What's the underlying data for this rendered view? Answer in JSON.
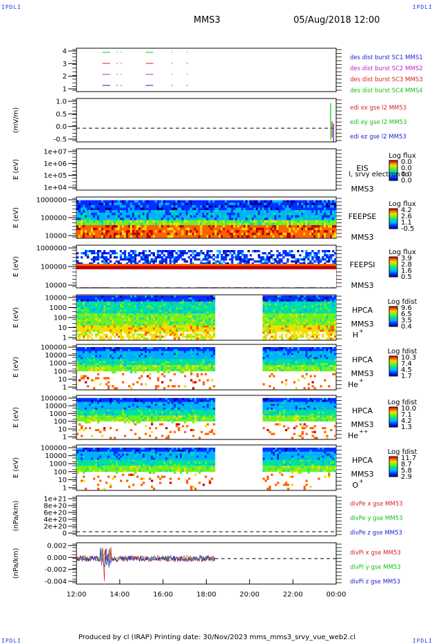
{
  "header": {
    "corner_label": "IPDLI",
    "spacecraft": "MMS3",
    "datetime": "05/Aug/2018 12:00"
  },
  "footer": {
    "text": "Produced by cl (IRAP)   Printing date: 30/Nov/2023   mms_mms3_srvy_vue_web2.cl"
  },
  "colors": {
    "c1": "#1a1ad6",
    "c2": "#d62020",
    "c3": "#c020d0",
    "c4": "#10c010",
    "ok_x": "#d62020",
    "ok_y": "#10c010",
    "ok_z": "#1a1ad6"
  },
  "chart_data": {
    "type": "multi-panel time series",
    "time_axis": {
      "range": [
        "12:00",
        "00:00"
      ],
      "ticks": [
        "12:00",
        "14:00",
        "16:00",
        "18:00",
        "20:00",
        "22:00",
        "00:00"
      ]
    },
    "panels": [
      {
        "id": "burst",
        "yticks": [
          "4",
          "3",
          "2",
          "1"
        ],
        "legend": [
          {
            "label": "des dist burst SC1 MMS1",
            "color_key": "c1"
          },
          {
            "label": "des dist burst SC2 MMS2",
            "color_key": "c3"
          },
          {
            "label": "des dist burst SC3 MMS3",
            "color_key": "c2"
          },
          {
            "label": "des dist burst SC4 MMS4",
            "color_key": "c4"
          }
        ],
        "bursts": [
          [
            13.2,
            13.55
          ],
          [
            13.85,
            13.9
          ],
          [
            14.05,
            14.1
          ],
          [
            15.2,
            15.55
          ],
          [
            16.4,
            16.45
          ],
          [
            17.1,
            17.15
          ]
        ]
      },
      {
        "id": "edi",
        "ylabel": "(mV/m)",
        "yticks": [
          "1.0",
          "0.5",
          "0.0",
          "-0.5"
        ],
        "ylim": [
          -0.6,
          1.3
        ],
        "legend": [
          {
            "label": "edi ex gse l2 MM53",
            "color_key": "ok_x"
          },
          {
            "label": "edi ey gse l2 MM53",
            "color_key": "ok_y"
          },
          {
            "label": "edi ez gse l2 MM53",
            "color_key": "ok_z"
          }
        ]
      },
      {
        "id": "eis",
        "ylabel": "E (eV)",
        "yticks": [
          "1e+07",
          "1e+06",
          "1e+05",
          "1e+04"
        ],
        "label_lines": [
          "EIS",
          "MMS3"
        ],
        "overlay_text": "l, srvy electron to",
        "colorbar_title": "Log flux",
        "colorbar_ticks": [
          "0.0",
          "0.0",
          "0.0",
          "0.0"
        ]
      },
      {
        "id": "feepse",
        "ylabel": "E (eV)",
        "yticks": [
          "1000000",
          "100000",
          "10000"
        ],
        "label_lines": [
          "FEEPSE",
          "MMS3"
        ],
        "colorbar_title": "Log flux",
        "colorbar_ticks": [
          "4.2",
          "2.6",
          "1.1",
          "-0.5"
        ]
      },
      {
        "id": "feepsi",
        "ylabel": "E (eV)",
        "yticks": [
          "1000000",
          "100000",
          "10000"
        ],
        "label_lines": [
          "FEEPSI",
          "MMS3"
        ],
        "colorbar_title": "Log flux",
        "colorbar_ticks": [
          "3.9",
          "2.8",
          "1.6",
          "0.5"
        ]
      },
      {
        "id": "hpca_h",
        "ylabel": "E (eV)",
        "yticks": [
          "10000",
          "1000",
          "100",
          "10",
          "1"
        ],
        "label_lines": [
          "HPCA",
          "MMS3"
        ],
        "species": "H",
        "charge": "+",
        "colorbar_title": "Log fdist",
        "colorbar_ticks": [
          "9.6",
          "6.5",
          "3.5",
          "0.4"
        ]
      },
      {
        "id": "hpca_he1",
        "ylabel": "E (eV)",
        "yticks": [
          "100000",
          "10000",
          "1000",
          "100",
          "10",
          "1"
        ],
        "label_lines": [
          "HPCA",
          "MMS3"
        ],
        "species": "He",
        "charge": "+",
        "colorbar_title": "Log fdist",
        "colorbar_ticks": [
          "10.3",
          "7.4",
          "4.5",
          "1.7"
        ]
      },
      {
        "id": "hpca_he2",
        "ylabel": "E (eV)",
        "yticks": [
          "100000",
          "10000",
          "1000",
          "100",
          "10",
          "1"
        ],
        "label_lines": [
          "HPCA",
          "MMS3"
        ],
        "species": "He",
        "charge": "++",
        "colorbar_title": "Log fdist",
        "colorbar_ticks": [
          "10.0",
          "7.1",
          "4.2",
          "1.3"
        ]
      },
      {
        "id": "hpca_o",
        "ylabel": "E (eV)",
        "yticks": [
          "100000",
          "10000",
          "1000",
          "100",
          "10",
          "1"
        ],
        "label_lines": [
          "HPCA",
          "MMS3"
        ],
        "species": "O",
        "charge": "+",
        "colorbar_title": "Log fdist",
        "colorbar_ticks": [
          "11.7",
          "8.7",
          "5.8",
          "2.9"
        ]
      },
      {
        "id": "divpe",
        "ylabel": "(nPa/km)",
        "yticks": [
          "1e+21",
          "8e+20",
          "6e+20",
          "4e+20",
          "2e+20",
          "0"
        ],
        "legend": [
          {
            "label": "divPe x gse MM53",
            "color_key": "ok_x"
          },
          {
            "label": "divPe y gse MM53",
            "color_key": "ok_y"
          },
          {
            "label": "divPe z gse MM53",
            "color_key": "ok_z"
          }
        ]
      },
      {
        "id": "divpi",
        "ylabel": "(nPa/km)",
        "yticks": [
          "0.002",
          "0.000",
          "-0.002",
          "-0.004"
        ],
        "ylim": [
          -0.0045,
          0.0028
        ],
        "legend": [
          {
            "label": "divPi x gse MM53",
            "color_key": "ok_x"
          },
          {
            "label": "divPi y gse MM53",
            "color_key": "ok_y"
          },
          {
            "label": "divPi z gse MM53",
            "color_key": "ok_z"
          }
        ]
      }
    ]
  }
}
